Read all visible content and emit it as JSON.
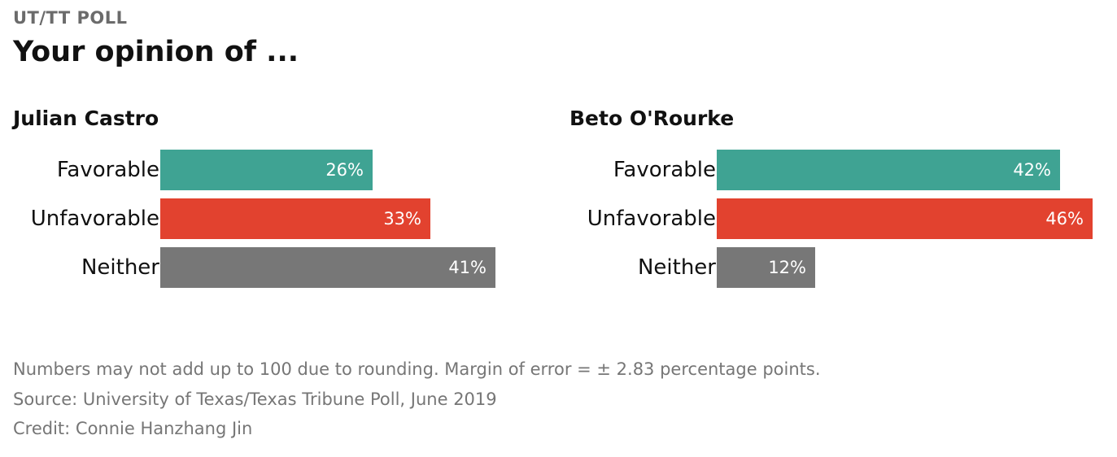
{
  "kicker": "UT/TT POLL",
  "title": "Your opinion of ...",
  "colors": {
    "favorable": "#3fa393",
    "unfavorable": "#e2422f",
    "neither": "#777777"
  },
  "chart_data": [
    {
      "type": "bar",
      "orientation": "horizontal",
      "title": "Julian Castro",
      "categories": [
        "Favorable",
        "Unfavorable",
        "Neither"
      ],
      "values": [
        26,
        33,
        41
      ],
      "value_labels": [
        "26%",
        "33%",
        "41%"
      ],
      "unit": "%",
      "xlim": [
        0,
        50
      ]
    },
    {
      "type": "bar",
      "orientation": "horizontal",
      "title": "Beto O'Rourke",
      "categories": [
        "Favorable",
        "Unfavorable",
        "Neither"
      ],
      "values": [
        42,
        46,
        12
      ],
      "value_labels": [
        "42%",
        "46%",
        "12%"
      ],
      "unit": "%",
      "xlim": [
        0,
        50
      ]
    }
  ],
  "footer": {
    "note": "Numbers may not add up to 100 due to rounding. Margin of error = ± 2.83 percentage points.",
    "source": "Source: University of Texas/Texas Tribune Poll, June 2019",
    "credit": "Credit: Connie Hanzhang Jin"
  }
}
